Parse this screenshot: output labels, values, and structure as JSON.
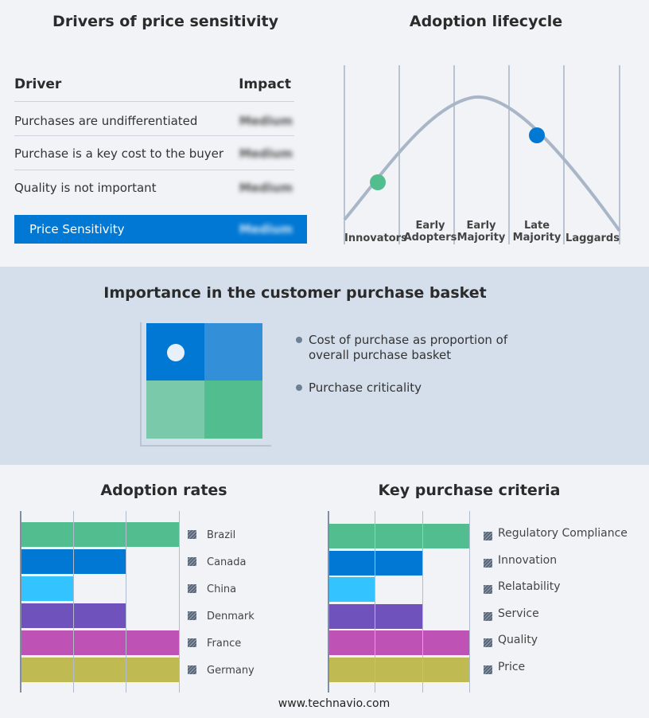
{
  "drivers": {
    "title": "Drivers of price sensitivity",
    "col_driver": "Driver",
    "col_impact": "Impact",
    "rows": [
      {
        "driver": "Purchases are undifferentiated",
        "impact": "Medium"
      },
      {
        "driver": "Purchase is a key cost to the buyer",
        "impact": "Medium"
      },
      {
        "driver": "Quality is not important",
        "impact": "Medium"
      }
    ],
    "summary": {
      "label": "Price Sensitivity",
      "impact": "Medium",
      "color": "#0078d4"
    }
  },
  "lifecycle": {
    "title": "Adoption lifecycle",
    "stages": [
      "Innovators",
      "Early Adopters",
      "Early Majority",
      "Late Majority",
      "Laggards"
    ],
    "markers": [
      {
        "stage": "Innovators",
        "color": "#52be8f"
      },
      {
        "stage": "Late Majority",
        "color": "#0078d4"
      }
    ]
  },
  "basket": {
    "title": "Importance in the customer purchase basket",
    "legend": [
      "Cost of purchase as proportion of overall purchase basket",
      "Purchase criticality"
    ],
    "quadrant_colors": [
      "#0078d4",
      "#3390d8",
      "#79c9aa",
      "#52be8f"
    ],
    "selected_quadrant": "top-left"
  },
  "chart_data": [
    {
      "type": "bar",
      "title": "Adoption rates",
      "orientation": "horizontal",
      "categories": [
        "Brazil",
        "Canada",
        "China",
        "Denmark",
        "France",
        "Germany"
      ],
      "values": [
        3,
        2,
        1,
        2,
        3,
        3
      ],
      "xlim": [
        0,
        3
      ],
      "grid": true,
      "legend": "right",
      "colors": [
        "#52be8f",
        "#0078d4",
        "#33c3ff",
        "#7052bd",
        "#bf52b5",
        "#bfba52"
      ]
    },
    {
      "type": "bar",
      "title": "Key purchase criteria",
      "orientation": "horizontal",
      "categories": [
        "Regulatory Compliance",
        "Innovation",
        "Relatability",
        "Service",
        "Quality",
        "Price"
      ],
      "values": [
        3,
        2,
        1,
        2,
        3,
        3
      ],
      "xlim": [
        0,
        3
      ],
      "grid": true,
      "legend": "right",
      "colors": [
        "#52be8f",
        "#0078d4",
        "#33c3ff",
        "#7052bd",
        "#bf52b5",
        "#bfba52"
      ]
    }
  ],
  "footer": "www.technavio.com"
}
